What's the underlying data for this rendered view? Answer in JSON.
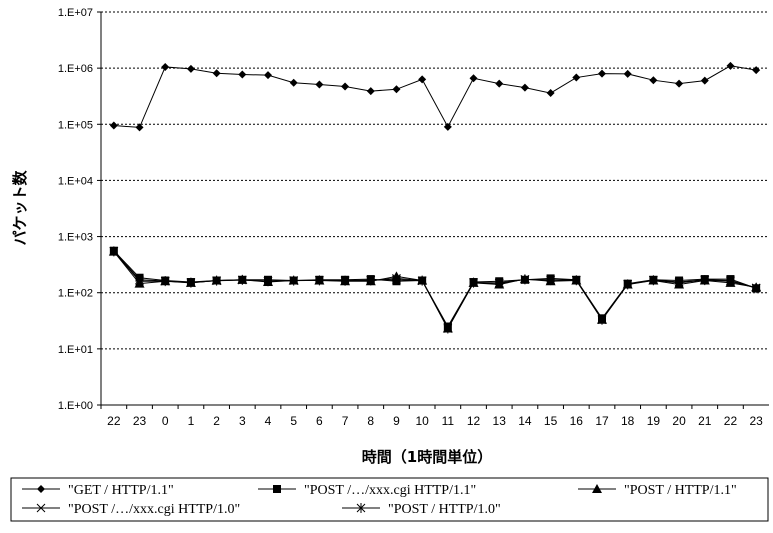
{
  "chart_data": {
    "type": "line",
    "ylabel": "パケット数",
    "xlabel": "時間（1時間単位）",
    "y_scale": "log",
    "ylim": [
      1,
      10000000
    ],
    "y_ticks": [
      "1.E+00",
      "1.E+01",
      "1.E+02",
      "1.E+03",
      "1.E+04",
      "1.E+05",
      "1.E+06",
      "1.E+07"
    ],
    "grid": "horizontal dotted",
    "legend_position": "bottom",
    "categories": [
      "22",
      "23",
      "0",
      "1",
      "2",
      "3",
      "4",
      "5",
      "6",
      "7",
      "8",
      "9",
      "10",
      "11",
      "12",
      "13",
      "14",
      "15",
      "16",
      "17",
      "18",
      "19",
      "20",
      "21",
      "22",
      "23"
    ],
    "series": [
      {
        "name": "\"GET / HTTP/1.1\"",
        "marker": "diamond",
        "color": "#000000",
        "values": [
          95000,
          88000,
          1050000,
          970000,
          810000,
          770000,
          750000,
          550000,
          510000,
          470000,
          390000,
          420000,
          630000,
          90000,
          660000,
          530000,
          450000,
          360000,
          680000,
          800000,
          790000,
          610000,
          530000,
          600000,
          1100000,
          920000
        ]
      },
      {
        "name": "\"POST /…/xxx.cgi HTTP/1.1\"",
        "marker": "square",
        "color": "#000000",
        "values": [
          560,
          185,
          165,
          155,
          165,
          170,
          170,
          165,
          170,
          170,
          175,
          160,
          165,
          25,
          155,
          160,
          170,
          180,
          170,
          35,
          145,
          170,
          165,
          175,
          175,
          120
        ]
      },
      {
        "name": "\"POST / HTTP/1.1\"",
        "marker": "triangle",
        "color": "#000000",
        "values": [
          540,
          145,
          160,
          150,
          165,
          170,
          155,
          165,
          165,
          160,
          160,
          195,
          165,
          23,
          150,
          140,
          175,
          160,
          165,
          33,
          140,
          165,
          140,
          165,
          150,
          125
        ]
      },
      {
        "name": "\"POST /…/xxx.cgi HTTP/1.0\"",
        "marker": "x",
        "color": "#000000",
        "values": [
          550,
          170,
          162,
          152,
          163,
          168,
          162,
          165,
          167,
          165,
          168,
          170,
          163,
          24,
          152,
          150,
          172,
          170,
          168,
          34,
          142,
          168,
          155,
          170,
          165,
          122
        ]
      },
      {
        "name": "\"POST / HTTP/1.0\"",
        "marker": "star",
        "color": "#000000",
        "values": [
          545,
          160,
          161,
          151,
          164,
          169,
          160,
          164,
          166,
          163,
          165,
          180,
          164,
          23,
          151,
          147,
          173,
          168,
          167,
          33,
          141,
          167,
          150,
          168,
          160,
          121
        ]
      }
    ]
  }
}
